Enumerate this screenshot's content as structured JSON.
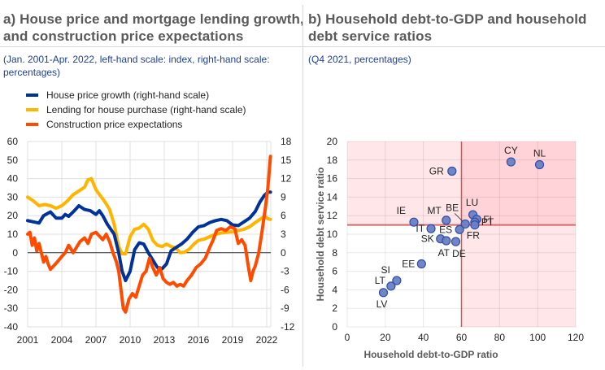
{
  "panel_a": {
    "title_line1": "a) House price and mortgage lending growth,",
    "title_line2": "and construction price expectations",
    "subtitle_line1": "(Jan. 2001-Apr. 2022, left-hand scale: index, right-hand scale:",
    "subtitle_line2": "percentages)"
  },
  "panel_b": {
    "title_line1": "b) Household debt-to-GDP and household",
    "title_line2": "debt service ratios",
    "subtitle": "(Q4 2021, percentages)"
  },
  "colors": {
    "house_price": "#003299",
    "lending": "#ffb400",
    "construction": "#ff4b00",
    "scatter_point": "#6a7fc4",
    "scatter_edge": "#2f4fa8",
    "threshold": "#d9534f",
    "title": "#5a5a5a",
    "subtitle": "#1f3f9a"
  },
  "chart_data": [
    {
      "type": "line",
      "title": "House price and mortgage lending growth, and construction price expectations",
      "subtitle": "(Jan. 2001-Apr. 2022, left-hand scale: index, right-hand scale: percentages)",
      "xlabel": "",
      "ylabel_left": "",
      "ylabel_right": "",
      "x_range": [
        2001,
        2022.33
      ],
      "x_ticks": [
        "2001",
        "2004",
        "2007",
        "2010",
        "2013",
        "2016",
        "2019",
        "2022"
      ],
      "ylim_left": [
        -40,
        60
      ],
      "yticks_left": [
        "60",
        "50",
        "40",
        "30",
        "20",
        "10",
        "0",
        "-10",
        "-20",
        "-30",
        "-40"
      ],
      "ylim_right": [
        -12,
        18
      ],
      "yticks_right": [
        "18",
        "15",
        "12",
        "9",
        "6",
        "3",
        "0",
        "-3",
        "-6",
        "-9",
        "-12"
      ],
      "grid": true,
      "legend_position": "top-left",
      "series": [
        {
          "name": "House price growth (right-hand scale)",
          "axis": "right",
          "color_key": "house_price",
          "x": [
            2001.0,
            2001.5,
            2002.0,
            2002.4,
            2003.0,
            2003.5,
            2004.0,
            2004.3,
            2004.6,
            2005.0,
            2005.5,
            2006.0,
            2006.5,
            2007.0,
            2007.3,
            2007.6,
            2008.0,
            2008.3,
            2008.6,
            2009.0,
            2009.3,
            2009.6,
            2010.0,
            2010.4,
            2010.8,
            2011.2,
            2011.6,
            2012.0,
            2012.4,
            2012.8,
            2013.2,
            2013.6,
            2014.0,
            2014.5,
            2015.0,
            2015.5,
            2016.0,
            2016.5,
            2017.0,
            2017.5,
            2018.0,
            2018.5,
            2019.0,
            2019.5,
            2020.0,
            2020.5,
            2021.0,
            2021.4,
            2021.8,
            2022.1,
            2022.33
          ],
          "values": [
            5.2,
            5.0,
            4.8,
            6.0,
            6.6,
            5.6,
            5.6,
            6.2,
            5.9,
            6.6,
            7.6,
            7.0,
            6.8,
            6.2,
            6.8,
            6.0,
            4.6,
            3.8,
            3.0,
            0.0,
            -3.0,
            -4.5,
            -3.0,
            0.5,
            1.6,
            1.4,
            0.0,
            -1.2,
            -2.4,
            -2.6,
            -1.8,
            0.3,
            0.8,
            1.4,
            2.2,
            3.3,
            4.2,
            4.4,
            4.9,
            5.2,
            5.4,
            5.2,
            4.5,
            4.4,
            5.0,
            5.6,
            6.7,
            8.2,
            9.3,
            9.8,
            9.8
          ]
        },
        {
          "name": "Lending for house purchase (right-hand scale)",
          "axis": "right",
          "color_key": "lending",
          "x": [
            2001.0,
            2001.5,
            2002.0,
            2002.5,
            2003.0,
            2003.5,
            2004.0,
            2004.5,
            2005.0,
            2005.5,
            2006.0,
            2006.3,
            2006.6,
            2007.0,
            2007.4,
            2007.8,
            2008.2,
            2008.6,
            2009.0,
            2009.3,
            2009.6,
            2010.0,
            2010.4,
            2010.8,
            2011.2,
            2011.6,
            2012.0,
            2012.4,
            2012.8,
            2013.2,
            2013.6,
            2014.0,
            2014.4,
            2014.8,
            2015.2,
            2015.6,
            2016.0,
            2016.5,
            2017.0,
            2017.5,
            2018.0,
            2018.5,
            2019.0,
            2019.5,
            2020.0,
            2020.5,
            2021.0,
            2021.4,
            2021.8,
            2022.1,
            2022.33
          ],
          "values": [
            9.0,
            8.4,
            7.6,
            7.8,
            7.6,
            7.2,
            7.6,
            8.4,
            9.4,
            10.0,
            10.6,
            11.8,
            12.0,
            10.2,
            9.2,
            8.2,
            7.0,
            4.6,
            1.0,
            -0.2,
            -0.2,
            2.6,
            3.8,
            4.0,
            4.6,
            3.8,
            2.0,
            1.2,
            1.0,
            1.4,
            1.0,
            0.8,
            0.0,
            0.1,
            0.6,
            1.4,
            2.0,
            2.2,
            2.6,
            3.0,
            3.2,
            3.3,
            3.4,
            3.6,
            3.8,
            4.2,
            4.9,
            5.4,
            5.9,
            5.5,
            5.4
          ]
        },
        {
          "name": "Construction price expectations",
          "axis": "left",
          "color_key": "construction",
          "x": [
            2001.0,
            2001.2,
            2001.4,
            2001.6,
            2001.8,
            2002.0,
            2002.2,
            2002.4,
            2002.6,
            2002.8,
            2003.0,
            2003.3,
            2003.6,
            2004.0,
            2004.3,
            2004.6,
            2005.0,
            2005.3,
            2005.6,
            2006.0,
            2006.3,
            2006.6,
            2007.0,
            2007.3,
            2007.6,
            2007.9,
            2008.2,
            2008.5,
            2008.8,
            2009.0,
            2009.2,
            2009.4,
            2009.6,
            2009.9,
            2010.2,
            2010.5,
            2010.8,
            2011.1,
            2011.4,
            2011.7,
            2012.0,
            2012.3,
            2012.6,
            2012.9,
            2013.2,
            2013.5,
            2013.8,
            2014.1,
            2014.4,
            2014.7,
            2015.0,
            2015.4,
            2015.8,
            2016.2,
            2016.6,
            2017.0,
            2017.3,
            2017.6,
            2018.0,
            2018.4,
            2018.8,
            2019.2,
            2019.5,
            2019.8,
            2020.1,
            2020.4,
            2020.6,
            2020.8,
            2021.0,
            2021.3,
            2021.6,
            2021.9,
            2022.1,
            2022.33
          ],
          "values": [
            10,
            11,
            4,
            8,
            1,
            5,
            0,
            -5,
            -2,
            -6,
            -9,
            -7,
            -5,
            -2,
            0,
            4,
            0,
            3,
            6,
            8,
            5,
            10,
            11,
            9,
            7,
            10,
            6,
            0,
            -5,
            -10,
            -20,
            -30,
            -32,
            -25,
            -22,
            -24,
            -18,
            -12,
            -10,
            -3,
            -8,
            -12,
            -8,
            -14,
            -16,
            -17,
            -16,
            -18,
            -17,
            -18,
            -15,
            -12,
            -8,
            -6,
            -3,
            3,
            7,
            12,
            13,
            12,
            14,
            13,
            5,
            7,
            4,
            -8,
            -15,
            -10,
            -7,
            0,
            12,
            25,
            35,
            52
          ]
        }
      ]
    },
    {
      "type": "scatter",
      "title": "Household debt-to-GDP and household debt service ratios",
      "subtitle": "(Q4 2021, percentages)",
      "xlabel": "Household debt-to-GDP ratio",
      "ylabel": "Household debt service ratio",
      "xlim": [
        0,
        120
      ],
      "ylim": [
        0,
        20
      ],
      "x_ticks": [
        "0",
        "20",
        "40",
        "60",
        "80",
        "100",
        "120"
      ],
      "y_ticks": [
        "0",
        "2",
        "4",
        "6",
        "8",
        "10",
        "12",
        "14",
        "16",
        "18",
        "20"
      ],
      "grid": true,
      "thresholds": {
        "x": 60,
        "y": 11
      },
      "points": [
        {
          "label": "CY",
          "x": 86,
          "y": 17.8
        },
        {
          "label": "NL",
          "x": 101,
          "y": 17.5
        },
        {
          "label": "GR",
          "x": 55,
          "y": 16.8
        },
        {
          "label": "IE",
          "x": 35,
          "y": 11.3
        },
        {
          "label": "MT",
          "x": 52,
          "y": 11.5
        },
        {
          "label": "BE",
          "x": 62,
          "y": 11.1
        },
        {
          "label": "LU",
          "x": 66,
          "y": 12.1
        },
        {
          "label": "FI",
          "x": 68,
          "y": 11.6
        },
        {
          "label": "PT",
          "x": 67,
          "y": 11.3
        },
        {
          "label": "FR",
          "x": 67,
          "y": 11.0
        },
        {
          "label": "ES",
          "x": 59,
          "y": 10.5
        },
        {
          "label": "IT",
          "x": 44,
          "y": 10.6
        },
        {
          "label": "SK",
          "x": 49,
          "y": 9.5
        },
        {
          "label": "AT",
          "x": 52,
          "y": 9.3
        },
        {
          "label": "DE",
          "x": 57,
          "y": 9.2
        },
        {
          "label": "EE",
          "x": 39,
          "y": 6.8
        },
        {
          "label": "SI",
          "x": 26,
          "y": 5.0
        },
        {
          "label": "LT",
          "x": 23,
          "y": 4.4
        },
        {
          "label": "LV",
          "x": 19,
          "y": 3.7
        }
      ]
    }
  ]
}
